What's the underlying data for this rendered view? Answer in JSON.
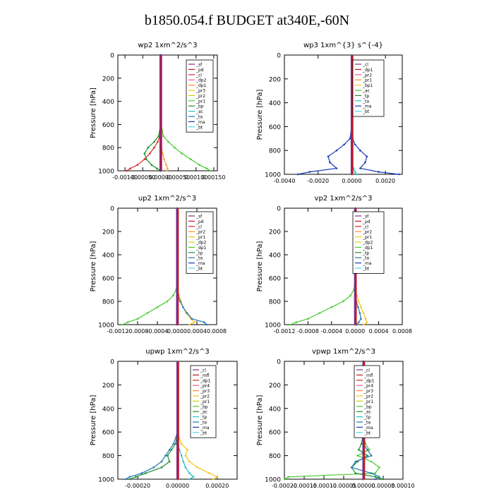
{
  "title": "b1850.054.f  BUDGET at340E,-60N",
  "chart_data": [
    {
      "type": "line",
      "title": "wp2   1xm^2/s^3",
      "ylabel": "Pressure [hPa]",
      "ylim": [
        1000,
        0
      ],
      "xlim": [
        -0.0012,
        0.0016
      ],
      "xticks": [
        "-0.00100",
        "-0.00050",
        "0.00000",
        "0.00050",
        "0.00100",
        "0.00150"
      ],
      "xtick_values": [
        -0.001,
        -0.0005,
        0,
        0.0005,
        0.001,
        0.0015
      ],
      "yticks": [
        0,
        200,
        400,
        600,
        800,
        1000
      ],
      "legend": [
        "_sf",
        "_pd",
        "_cl",
        "_dp2",
        "_dp1",
        "_pr3",
        "_pr2",
        "_pr1",
        "_bp",
        "_ac",
        "_ta",
        "_ma",
        "_bt"
      ],
      "levels": [
        0,
        100,
        200,
        300,
        400,
        500,
        600,
        700,
        750,
        800,
        850,
        900,
        950,
        980,
        1000
      ],
      "series": [
        {
          "name": "_sf",
          "color": "#7b2d8b",
          "values": [
            0,
            0,
            0,
            0,
            0,
            0,
            0,
            0,
            0,
            0,
            0,
            0,
            0,
            0,
            0
          ]
        },
        {
          "name": "_cl",
          "color": "#d62728",
          "values": [
            0,
            0,
            0,
            0,
            0,
            0,
            0,
            -2e-05,
            -8e-05,
            -0.00018,
            -0.0003,
            -0.00045,
            -0.00065,
            -0.00085,
            -0.00095
          ]
        },
        {
          "name": "_dp1",
          "color": "#e8a23a",
          "values": [
            0,
            0,
            0,
            0,
            0,
            0,
            0,
            0,
            1e-05,
            3e-05,
            6e-05,
            0.0001,
            0.00016,
            0.0002,
            0.00018
          ]
        },
        {
          "name": "_pr1",
          "color": "#44cc2d",
          "values": [
            0,
            0,
            0,
            0,
            0,
            0,
            2e-05,
            8e-05,
            0.00022,
            0.0004,
            0.0006,
            0.00085,
            0.0011,
            0.0013,
            0.0014
          ]
        },
        {
          "name": "_bp",
          "color": "#1a8f2e",
          "values": [
            0,
            0,
            0,
            0,
            0,
            0,
            0,
            -5e-05,
            -0.00018,
            -0.00035,
            -0.00045,
            -0.0004,
            -0.00025,
            -0.0001,
            0
          ]
        },
        {
          "name": "_ta",
          "color": "#1a3bb5",
          "values": [
            0,
            0,
            0,
            0,
            0,
            0,
            0,
            0,
            0,
            0,
            0,
            0,
            0,
            0,
            0
          ]
        }
      ]
    },
    {
      "type": "line",
      "title": "wp3   1xm^{3} s^{-4}",
      "ylabel": "Pressure [hPa]",
      "ylim": [
        1000,
        0
      ],
      "xlim": [
        -0.004,
        0.003
      ],
      "xticks": [
        "-0.0040",
        "-0.0020",
        "0.0000",
        "0.0020"
      ],
      "xtick_values": [
        -0.004,
        -0.002,
        0,
        0.002
      ],
      "yticks": [
        0,
        200,
        400,
        600,
        800,
        1000
      ],
      "legend": [
        "_cl",
        "_dp1",
        "_pr2",
        "_pr1",
        "_bp1",
        "_ac",
        "_tp",
        "_ta",
        "_ma",
        "_bt"
      ],
      "levels": [
        0,
        100,
        200,
        300,
        400,
        500,
        600,
        700,
        750,
        800,
        850,
        900,
        950,
        980,
        1000
      ],
      "series": [
        {
          "name": "_cl",
          "color": "#d62728",
          "values": [
            0,
            0,
            0,
            0,
            0,
            0,
            0,
            0,
            0,
            0,
            0,
            0,
            0,
            0,
            0
          ]
        },
        {
          "name": "_tp",
          "color": "#1a3bb5",
          "values": [
            0,
            0,
            0,
            0,
            0,
            0,
            0,
            -0.0001,
            -0.00045,
            -0.0009,
            -0.0014,
            -0.0013,
            -0.0009,
            -0.0025,
            -0.0032
          ]
        },
        {
          "name": "_ta",
          "color": "#1a3bb5",
          "values": [
            0,
            0,
            0,
            0,
            0,
            0,
            0,
            5e-05,
            0.0002,
            0.0005,
            0.0009,
            0.0008,
            0.0005,
            0.0016,
            0.0028
          ]
        },
        {
          "name": "_ac",
          "color": "#22c3c7",
          "values": [
            0,
            0,
            0,
            0,
            0,
            0,
            0,
            0,
            0,
            0,
            0,
            0,
            0.0001,
            0.0002,
            0.0003
          ]
        }
      ]
    },
    {
      "type": "line",
      "title": "up2   1xm^2/s^3",
      "ylabel": "Pressure [hPa]",
      "ylim": [
        1000,
        0
      ],
      "xlim": [
        -0.0012,
        0.0008
      ],
      "xticks": [
        "-0.0012",
        "-0.0008",
        "-0.0004",
        "0.0000",
        "0.0004",
        "0.0008"
      ],
      "xtick_values": [
        -0.0012,
        -0.0008,
        -0.0004,
        0,
        0.0004,
        0.0008
      ],
      "yticks": [
        0,
        200,
        400,
        600,
        800,
        1000
      ],
      "legend": [
        "_sf",
        "_pd",
        "_cl",
        "_pr2",
        "_pr1",
        "_dp2",
        "_dp1",
        "_tp",
        "_ta",
        "_ma",
        "_bt"
      ],
      "levels": [
        0,
        100,
        200,
        300,
        400,
        500,
        600,
        700,
        750,
        800,
        850,
        900,
        950,
        980,
        1000
      ],
      "series": [
        {
          "name": "_sf",
          "color": "#7b2d8b",
          "values": [
            0,
            0,
            0,
            0,
            0,
            0,
            0,
            0,
            0,
            0,
            0,
            0,
            0,
            0,
            0
          ]
        },
        {
          "name": "_cl",
          "color": "#d62728",
          "values": [
            0,
            0,
            0,
            0,
            0,
            0,
            0,
            0,
            0,
            0,
            0,
            0,
            0,
            0,
            0
          ]
        },
        {
          "name": "_pr1",
          "color": "#f5c518",
          "values": [
            0,
            0,
            0,
            0,
            0,
            0,
            0,
            1e-05,
            4e-05,
            8e-05,
            0.00012,
            0.00018,
            0.00028,
            0.00035,
            0.00025
          ]
        },
        {
          "name": "_dp2",
          "color": "#44cc2d",
          "values": [
            0,
            0,
            0,
            0,
            0,
            0,
            0,
            -2e-05,
            -8e-05,
            -0.0002,
            -0.0004,
            -0.0006,
            -0.0008,
            -0.001,
            -0.0011
          ]
        },
        {
          "name": "_tp",
          "color": "#1f77b4",
          "values": [
            0,
            0,
            0,
            0,
            0,
            0,
            0,
            0,
            2e-05,
            6e-05,
            0.00012,
            0.0002,
            0.0003,
            0.00055,
            0.0006
          ]
        }
      ]
    },
    {
      "type": "line",
      "title": "vp2   1xm^2/s^3",
      "ylabel": "Pressure [hPa]",
      "ylim": [
        1000,
        0
      ],
      "xlim": [
        -0.0012,
        0.0008
      ],
      "xticks": [
        "-0.0012",
        "-0.0008",
        "-0.0004",
        "0.0000",
        "0.0004",
        "0.0008"
      ],
      "xtick_values": [
        -0.0012,
        -0.0008,
        -0.0004,
        0,
        0.0004,
        0.0008
      ],
      "yticks": [
        0,
        200,
        400,
        600,
        800,
        1000
      ],
      "legend": [
        "_sf",
        "_pd",
        "_cl",
        "_pr2",
        "_pr1",
        "_dp2",
        "_dp1",
        "_tp",
        "_ta",
        "_ma",
        "_bt"
      ],
      "levels": [
        0,
        100,
        200,
        300,
        400,
        500,
        600,
        700,
        750,
        800,
        850,
        900,
        950,
        980,
        1000
      ],
      "series": [
        {
          "name": "_sf",
          "color": "#7b2d8b",
          "values": [
            0,
            0,
            0,
            0,
            0,
            0,
            0,
            0,
            0,
            0,
            0,
            0,
            0,
            0,
            0
          ]
        },
        {
          "name": "_cl",
          "color": "#d62728",
          "values": [
            0,
            0,
            0,
            0,
            0,
            0,
            0,
            0,
            0,
            0,
            0,
            0,
            0,
            0,
            0
          ]
        },
        {
          "name": "_pr1",
          "color": "#f5c518",
          "values": [
            0,
            0,
            0,
            0,
            0,
            0,
            0,
            1e-05,
            3e-05,
            6e-05,
            0.0001,
            0.00014,
            0.00018,
            0.0002,
            0.00015
          ]
        },
        {
          "name": "_dp2",
          "color": "#44cc2d",
          "values": [
            0,
            0,
            0,
            0,
            0,
            0,
            0,
            -2e-05,
            -8e-05,
            -0.0002,
            -0.0004,
            -0.0006,
            -0.0008,
            -0.001,
            -0.0011
          ]
        },
        {
          "name": "_tp",
          "color": "#1f77b4",
          "values": [
            0,
            0,
            0,
            0,
            0,
            0,
            0,
            0,
            0,
            2e-05,
            5e-05,
            8e-05,
            0.0001,
            6e-05,
            2e-05
          ]
        }
      ]
    },
    {
      "type": "line",
      "title": "upwp   1xm^2/s^3",
      "ylabel": "Pressure [hPa]",
      "ylim": [
        1000,
        0
      ],
      "xlim": [
        -0.0003,
        0.0003
      ],
      "xticks": [
        "-0.00020",
        "0.00000",
        "0.00020"
      ],
      "xtick_values": [
        -0.0002,
        0,
        0.0002
      ],
      "yticks": [
        0,
        200,
        400,
        600,
        800,
        1000
      ],
      "legend": [
        "_cl",
        "_mfl",
        "_dp1",
        "_pr4",
        "_pr3",
        "_pr2",
        "_pr1",
        "_bp",
        "_ac",
        "_tp",
        "_ta",
        "_ma",
        "_bt"
      ],
      "levels": [
        0,
        100,
        200,
        300,
        400,
        500,
        600,
        700,
        750,
        800,
        850,
        900,
        950,
        980,
        1000
      ],
      "series": [
        {
          "name": "_mfl",
          "color": "#7b2d8b",
          "values": [
            0,
            0,
            0,
            0,
            0,
            0,
            0,
            0,
            0,
            0,
            0,
            0,
            0,
            0,
            0
          ]
        },
        {
          "name": "_dp1",
          "color": "#d62728",
          "values": [
            0,
            0,
            0,
            0,
            0,
            0,
            0,
            0,
            0,
            0,
            0,
            0,
            0,
            0,
            0
          ]
        },
        {
          "name": "_pr1",
          "color": "#f5c518",
          "values": [
            0,
            0,
            0,
            0,
            0,
            0,
            0,
            2e-05,
            5e-05,
            4e-05,
            6e-05,
            0.0001,
            0.00016,
            0.0002,
            0.00018
          ]
        },
        {
          "name": "_bp",
          "color": "#1a8f2e",
          "values": [
            0,
            0,
            0,
            0,
            0,
            0,
            0,
            -1e-05,
            -3e-05,
            -5e-05,
            -4e-05,
            -8e-05,
            -0.00016,
            -0.00021,
            -0.00024
          ]
        },
        {
          "name": "_tp",
          "color": "#1f77b4",
          "values": [
            0,
            0,
            0,
            0,
            0,
            0,
            0,
            -2e-05,
            -4e-05,
            -6e-05,
            -8e-05,
            -0.00012,
            -0.00018,
            -0.00024,
            -0.00026
          ]
        },
        {
          "name": "_ac",
          "color": "#22c3c7",
          "values": [
            0,
            0,
            0,
            0,
            0,
            0,
            0,
            0,
            1e-05,
            2e-05,
            3e-05,
            4e-05,
            6e-05,
            8e-05,
            6e-05
          ]
        }
      ]
    },
    {
      "type": "line",
      "title": "vpwp   1xm^2/s^3",
      "ylabel": "Pressure [hPa]",
      "ylim": [
        1000,
        0
      ],
      "xlim": [
        -0.0002,
        0.0001
      ],
      "xticks": [
        "-0.00020",
        "-0.00015",
        "-0.00010",
        "-0.00005",
        "0.00000",
        "0.00005",
        "0.00010"
      ],
      "xtick_values": [
        -0.0002,
        -0.00015,
        -0.0001,
        -5e-05,
        0,
        5e-05,
        0.0001
      ],
      "yticks": [
        0,
        200,
        400,
        600,
        800,
        1000
      ],
      "legend": [
        "_cl",
        "_mfl",
        "_dp1",
        "_pr4",
        "_pr3",
        "_pr2",
        "_pr1",
        "_bp",
        "_ac",
        "_tp",
        "_ta",
        "_ma",
        "_bt"
      ],
      "levels": [
        0,
        100,
        200,
        300,
        400,
        500,
        600,
        700,
        750,
        800,
        850,
        900,
        950,
        980,
        1000
      ],
      "series": [
        {
          "name": "_mfl",
          "color": "#7b2d8b",
          "values": [
            0,
            0,
            0,
            0,
            0,
            0,
            0,
            0,
            0,
            0,
            0,
            0,
            0,
            0,
            0
          ]
        },
        {
          "name": "_dp1",
          "color": "#d62728",
          "values": [
            0,
            0,
            0,
            0,
            0,
            0,
            0,
            0,
            0,
            0,
            0,
            0,
            0,
            0,
            0
          ]
        },
        {
          "name": "_pr1",
          "color": "#44cc2d",
          "values": [
            0,
            0,
            0,
            0,
            0,
            0,
            0,
            5e-06,
            1.5e-05,
            -1.5e-05,
            2e-05,
            4e-05,
            3e-05,
            -0.00019,
            -0.0002
          ]
        },
        {
          "name": "_bp",
          "color": "#1a8f2e",
          "values": [
            0,
            0,
            0,
            0,
            0,
            0,
            0,
            -5e-06,
            -1.2e-05,
            1e-05,
            -1.5e-05,
            -3e-05,
            -2e-05,
            3e-05,
            5e-05
          ]
        },
        {
          "name": "_tp",
          "color": "#1f77b4",
          "values": [
            0,
            0,
            0,
            0,
            0,
            0,
            0,
            0,
            1e-05,
            2e-05,
            -2e-05,
            -3e-05,
            2e-05,
            4e-05,
            3e-05
          ]
        }
      ]
    }
  ]
}
